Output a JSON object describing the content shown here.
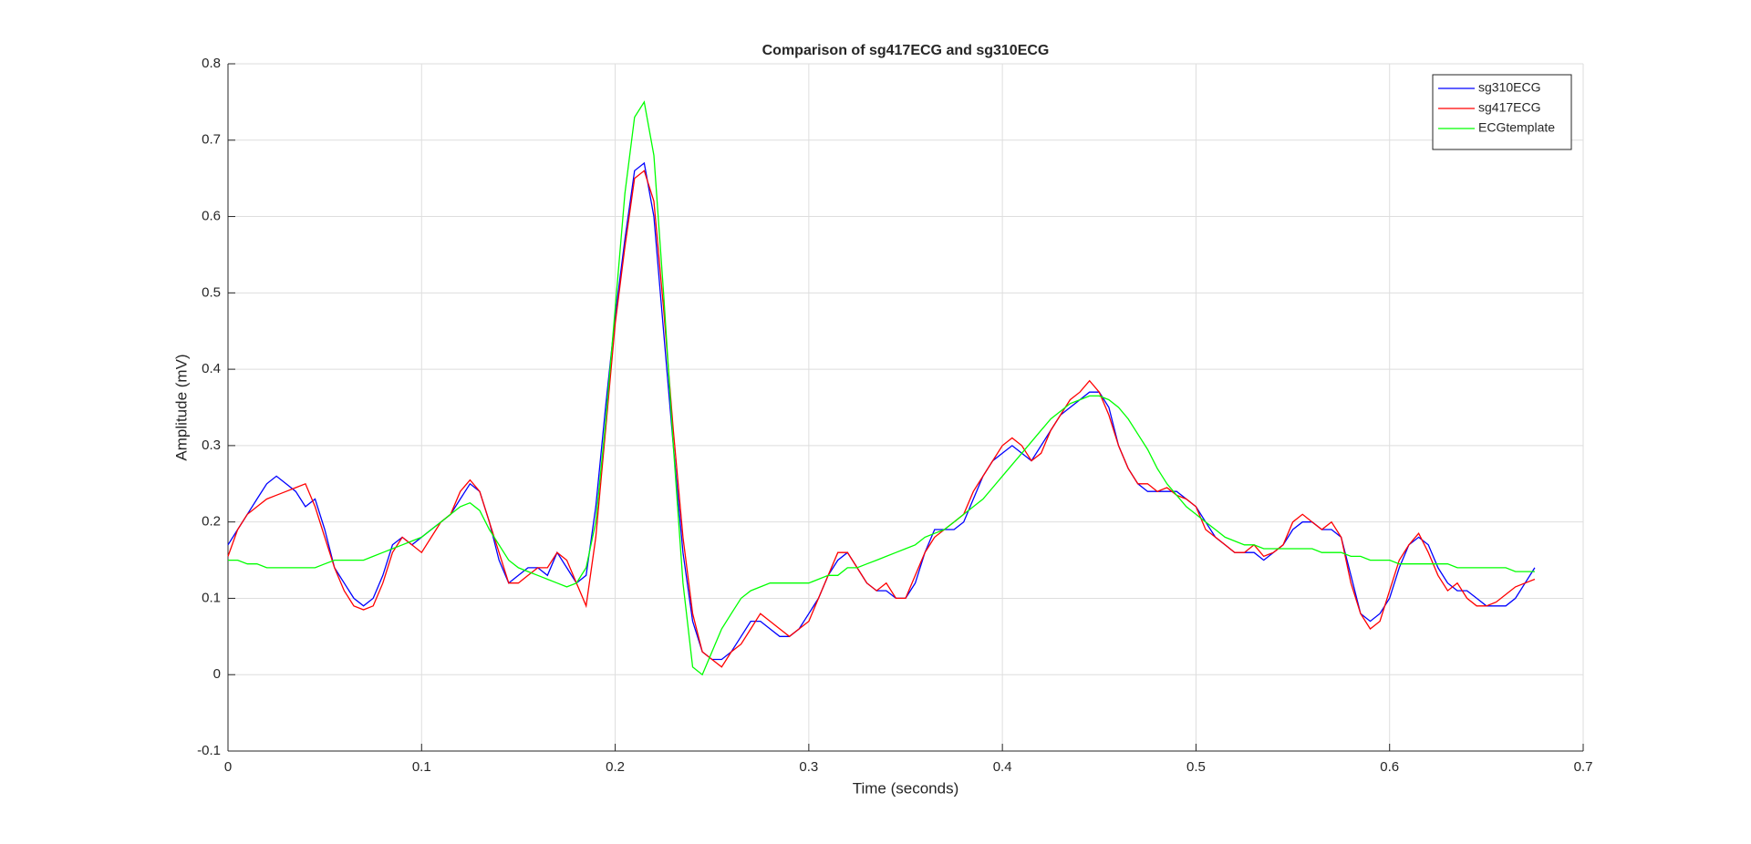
{
  "chart_data": {
    "type": "line",
    "title": "Comparison of sg417ECG and sg310ECG",
    "x_label": "Time (seconds)",
    "y_label": "Amplitude (mV)",
    "xlim": [
      0,
      0.7
    ],
    "xticks": [
      0,
      0.1,
      0.2,
      0.3,
      0.4,
      0.5,
      0.6,
      0.7
    ],
    "ylim": [
      -0.1,
      0.8
    ],
    "yticks": [
      -0.1,
      0,
      0.1,
      0.2,
      0.3,
      0.4,
      0.5,
      0.6,
      0.7,
      0.8
    ],
    "grid": true,
    "legend_position": "upper-right",
    "x": [
      0,
      0.005,
      0.01,
      0.015,
      0.02,
      0.025,
      0.03,
      0.035,
      0.04,
      0.045,
      0.05,
      0.055,
      0.06,
      0.065,
      0.07,
      0.075,
      0.08,
      0.085,
      0.09,
      0.095,
      0.1,
      0.105,
      0.11,
      0.115,
      0.12,
      0.125,
      0.13,
      0.135,
      0.14,
      0.145,
      0.15,
      0.155,
      0.16,
      0.165,
      0.17,
      0.175,
      0.18,
      0.185,
      0.19,
      0.195,
      0.2,
      0.205,
      0.21,
      0.215,
      0.22,
      0.225,
      0.23,
      0.235,
      0.24,
      0.245,
      0.25,
      0.255,
      0.26,
      0.265,
      0.27,
      0.275,
      0.28,
      0.285,
      0.29,
      0.295,
      0.3,
      0.305,
      0.31,
      0.315,
      0.32,
      0.325,
      0.33,
      0.335,
      0.34,
      0.345,
      0.35,
      0.355,
      0.36,
      0.365,
      0.37,
      0.375,
      0.38,
      0.385,
      0.39,
      0.395,
      0.4,
      0.405,
      0.41,
      0.415,
      0.42,
      0.425,
      0.43,
      0.435,
      0.44,
      0.445,
      0.45,
      0.455,
      0.46,
      0.465,
      0.47,
      0.475,
      0.48,
      0.485,
      0.49,
      0.495,
      0.5,
      0.505,
      0.51,
      0.515,
      0.52,
      0.525,
      0.53,
      0.535,
      0.54,
      0.545,
      0.55,
      0.555,
      0.56,
      0.565,
      0.57,
      0.575,
      0.58,
      0.585,
      0.59,
      0.595,
      0.6,
      0.605,
      0.61,
      0.615,
      0.62,
      0.625,
      0.63,
      0.635,
      0.64,
      0.645,
      0.65,
      0.655,
      0.66,
      0.665,
      0.67,
      0.675
    ],
    "series": [
      {
        "name": "sg310ECG",
        "color": "#0000ff",
        "values": [
          0.17,
          0.19,
          0.21,
          0.23,
          0.25,
          0.26,
          0.25,
          0.24,
          0.22,
          0.23,
          0.19,
          0.14,
          0.12,
          0.1,
          0.09,
          0.1,
          0.13,
          0.17,
          0.18,
          0.17,
          0.18,
          0.19,
          0.2,
          0.21,
          0.23,
          0.25,
          0.24,
          0.2,
          0.15,
          0.12,
          0.13,
          0.14,
          0.14,
          0.13,
          0.16,
          0.14,
          0.12,
          0.13,
          0.22,
          0.35,
          0.47,
          0.57,
          0.66,
          0.67,
          0.6,
          0.45,
          0.3,
          0.16,
          0.07,
          0.03,
          0.02,
          0.02,
          0.03,
          0.05,
          0.07,
          0.07,
          0.06,
          0.05,
          0.05,
          0.06,
          0.08,
          0.1,
          0.13,
          0.15,
          0.16,
          0.14,
          0.12,
          0.11,
          0.11,
          0.1,
          0.1,
          0.12,
          0.16,
          0.19,
          0.19,
          0.19,
          0.2,
          0.23,
          0.26,
          0.28,
          0.29,
          0.3,
          0.29,
          0.28,
          0.3,
          0.32,
          0.34,
          0.35,
          0.36,
          0.37,
          0.37,
          0.35,
          0.3,
          0.27,
          0.25,
          0.24,
          0.24,
          0.24,
          0.24,
          0.23,
          0.22,
          0.2,
          0.18,
          0.17,
          0.16,
          0.16,
          0.16,
          0.15,
          0.16,
          0.17,
          0.19,
          0.2,
          0.2,
          0.19,
          0.19,
          0.18,
          0.13,
          0.08,
          0.07,
          0.08,
          0.1,
          0.14,
          0.17,
          0.18,
          0.17,
          0.14,
          0.12,
          0.11,
          0.11,
          0.1,
          0.09,
          0.09,
          0.09,
          0.1,
          0.12,
          0.14
        ]
      },
      {
        "name": "sg417ECG",
        "color": "#ff0000",
        "values": [
          0.155,
          0.19,
          0.21,
          0.22,
          0.23,
          0.235,
          0.24,
          0.245,
          0.25,
          0.22,
          0.18,
          0.14,
          0.11,
          0.09,
          0.085,
          0.09,
          0.12,
          0.16,
          0.18,
          0.17,
          0.16,
          0.18,
          0.2,
          0.21,
          0.24,
          0.255,
          0.24,
          0.2,
          0.16,
          0.12,
          0.12,
          0.13,
          0.14,
          0.14,
          0.16,
          0.15,
          0.12,
          0.09,
          0.18,
          0.32,
          0.46,
          0.56,
          0.65,
          0.66,
          0.62,
          0.48,
          0.32,
          0.18,
          0.08,
          0.03,
          0.02,
          0.01,
          0.03,
          0.04,
          0.06,
          0.08,
          0.07,
          0.06,
          0.05,
          0.06,
          0.07,
          0.1,
          0.13,
          0.16,
          0.16,
          0.14,
          0.12,
          0.11,
          0.12,
          0.1,
          0.1,
          0.13,
          0.16,
          0.18,
          0.19,
          0.2,
          0.21,
          0.24,
          0.26,
          0.28,
          0.3,
          0.31,
          0.3,
          0.28,
          0.29,
          0.32,
          0.34,
          0.36,
          0.37,
          0.385,
          0.37,
          0.34,
          0.3,
          0.27,
          0.25,
          0.25,
          0.24,
          0.245,
          0.235,
          0.23,
          0.22,
          0.19,
          0.18,
          0.17,
          0.16,
          0.16,
          0.17,
          0.155,
          0.16,
          0.17,
          0.2,
          0.21,
          0.2,
          0.19,
          0.2,
          0.18,
          0.12,
          0.08,
          0.06,
          0.07,
          0.11,
          0.15,
          0.17,
          0.185,
          0.16,
          0.13,
          0.11,
          0.12,
          0.1,
          0.09,
          0.09,
          0.095,
          0.105,
          0.115,
          0.12,
          0.125
        ]
      },
      {
        "name": "ECGtemplate",
        "color": "#00ff00",
        "values": [
          0.15,
          0.15,
          0.145,
          0.145,
          0.14,
          0.14,
          0.14,
          0.14,
          0.14,
          0.14,
          0.145,
          0.15,
          0.15,
          0.15,
          0.15,
          0.155,
          0.16,
          0.165,
          0.17,
          0.175,
          0.18,
          0.19,
          0.2,
          0.21,
          0.22,
          0.225,
          0.215,
          0.19,
          0.17,
          0.15,
          0.14,
          0.135,
          0.13,
          0.125,
          0.12,
          0.115,
          0.12,
          0.14,
          0.2,
          0.33,
          0.48,
          0.63,
          0.73,
          0.75,
          0.68,
          0.5,
          0.3,
          0.12,
          0.01,
          0.0,
          0.03,
          0.06,
          0.08,
          0.1,
          0.11,
          0.115,
          0.12,
          0.12,
          0.12,
          0.12,
          0.12,
          0.125,
          0.13,
          0.13,
          0.14,
          0.14,
          0.145,
          0.15,
          0.155,
          0.16,
          0.165,
          0.17,
          0.18,
          0.185,
          0.19,
          0.2,
          0.21,
          0.22,
          0.23,
          0.245,
          0.26,
          0.275,
          0.29,
          0.305,
          0.32,
          0.335,
          0.345,
          0.355,
          0.36,
          0.365,
          0.365,
          0.36,
          0.35,
          0.335,
          0.315,
          0.295,
          0.27,
          0.25,
          0.235,
          0.22,
          0.21,
          0.2,
          0.19,
          0.18,
          0.175,
          0.17,
          0.17,
          0.165,
          0.165,
          0.165,
          0.165,
          0.165,
          0.165,
          0.16,
          0.16,
          0.16,
          0.155,
          0.155,
          0.15,
          0.15,
          0.15,
          0.145,
          0.145,
          0.145,
          0.145,
          0.145,
          0.145,
          0.14,
          0.14,
          0.14,
          0.14,
          0.14,
          0.14,
          0.135,
          0.135,
          0.135
        ]
      }
    ]
  }
}
